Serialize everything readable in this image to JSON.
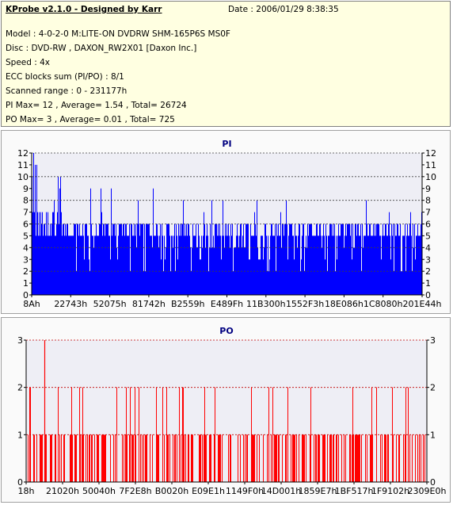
{
  "header": {
    "title": "KProbe v2.1.0 - Designed by Karr",
    "date": "Date : 2006/01/29 8:38:35",
    "lines": [
      "Model : 4-0-2-0 M:LITE-ON DVDRW SHM-165P6S MS0F",
      "Disc : DVD-RW , DAXON_RW2X01 [Daxon Inc.]",
      "Speed : 4x",
      "ECC blocks sum (PI/PO) : 8/1",
      "Scanned range : 0 - 231177h",
      "PI Max= 12 , Average= 1.54 , Total= 26724",
      "PO Max= 3 , Average= 0.01 , Total= 725"
    ]
  },
  "colors": {
    "pi": "#0000ff",
    "po": "#ff0000",
    "title": "#000080",
    "grid": "#c00000",
    "plot_bg": "#eeeef5"
  },
  "chart_data": [
    {
      "type": "bar",
      "title": "PI",
      "ylim": [
        0,
        12
      ],
      "yticks": [
        "0",
        "1",
        "2",
        "3",
        "4",
        "5",
        "6",
        "7",
        "8",
        "9",
        "10",
        "11",
        "12"
      ],
      "xticks": [
        "8Ah",
        "22743h",
        "52075h",
        "81742h",
        "B2559h",
        "E489Fh",
        "11B300h",
        "1552F3h",
        "18E086h",
        "1C8080h",
        "201E44h"
      ],
      "grid": "dashed horizontal every 2",
      "profile": {
        "baseline": [
          5,
          6
        ],
        "segments": [
          {
            "x_fraction": [
              0.0,
              0.08
            ],
            "max": 12
          },
          {
            "x_fraction": [
              0.08,
              0.2
            ],
            "max": 9
          },
          {
            "x_fraction": [
              0.2,
              0.6
            ],
            "max": 9
          },
          {
            "x_fraction": [
              0.6,
              1.0
            ],
            "max": 9
          }
        ]
      }
    },
    {
      "type": "bar",
      "title": "PO",
      "ylim": [
        0,
        3
      ],
      "yticks": [
        "0",
        "1",
        "2",
        "3"
      ],
      "xticks": [
        "18h",
        "21020h",
        "50040h",
        "7F2E8h",
        "B0020h",
        "E09E1h",
        "1149F0h",
        "14D001h",
        "1859E7h",
        "1BF517h",
        "1F9102h",
        "2309E0h"
      ],
      "grid": "dashed horizontal every 1",
      "profile": {
        "level_counts": {
          "1": 200,
          "2": 30,
          "3": 1
        }
      }
    }
  ]
}
